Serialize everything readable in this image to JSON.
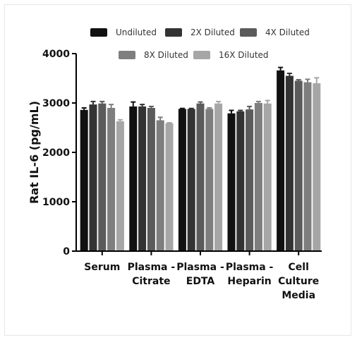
{
  "chart_data": {
    "type": "bar",
    "ylabel": "Rat IL-6 (pg/mL)",
    "ylim": [
      0,
      4000
    ],
    "yticks": [
      "0",
      "1000",
      "2000",
      "3000",
      "4000"
    ],
    "categories": [
      {
        "lines": [
          "Serum"
        ]
      },
      {
        "lines": [
          "Plasma -",
          "Citrate"
        ]
      },
      {
        "lines": [
          "Plasma -",
          "EDTA"
        ]
      },
      {
        "lines": [
          "Plasma -",
          "Heparin"
        ]
      },
      {
        "lines": [
          "Cell",
          "Culture",
          "Media"
        ]
      }
    ],
    "legend_position": "top",
    "series": [
      {
        "name": "Undiluted",
        "color": "#111111",
        "values": [
          2860,
          2930,
          2880,
          2790,
          3660
        ],
        "errors": [
          40,
          90,
          10,
          60,
          60
        ]
      },
      {
        "name": "2X Diluted",
        "color": "#333333",
        "values": [
          2970,
          2930,
          2880,
          2830,
          3550
        ],
        "errors": [
          60,
          40,
          10,
          20,
          50
        ]
      },
      {
        "name": "4X Diluted",
        "color": "#5b5b5b",
        "values": [
          2990,
          2900,
          2990,
          2870,
          3450
        ],
        "errors": [
          40,
          30,
          30,
          60,
          20
        ]
      },
      {
        "name": "8X Diluted",
        "color": "#7e7e7e",
        "values": [
          2900,
          2650,
          2880,
          3000,
          3420
        ],
        "errors": [
          70,
          60,
          20,
          30,
          60
        ]
      },
      {
        "name": "16X Diluted",
        "color": "#a6a6a6",
        "values": [
          2630,
          2590,
          2990,
          2990,
          3400
        ],
        "errors": [
          30,
          10,
          40,
          60,
          110
        ]
      }
    ]
  }
}
